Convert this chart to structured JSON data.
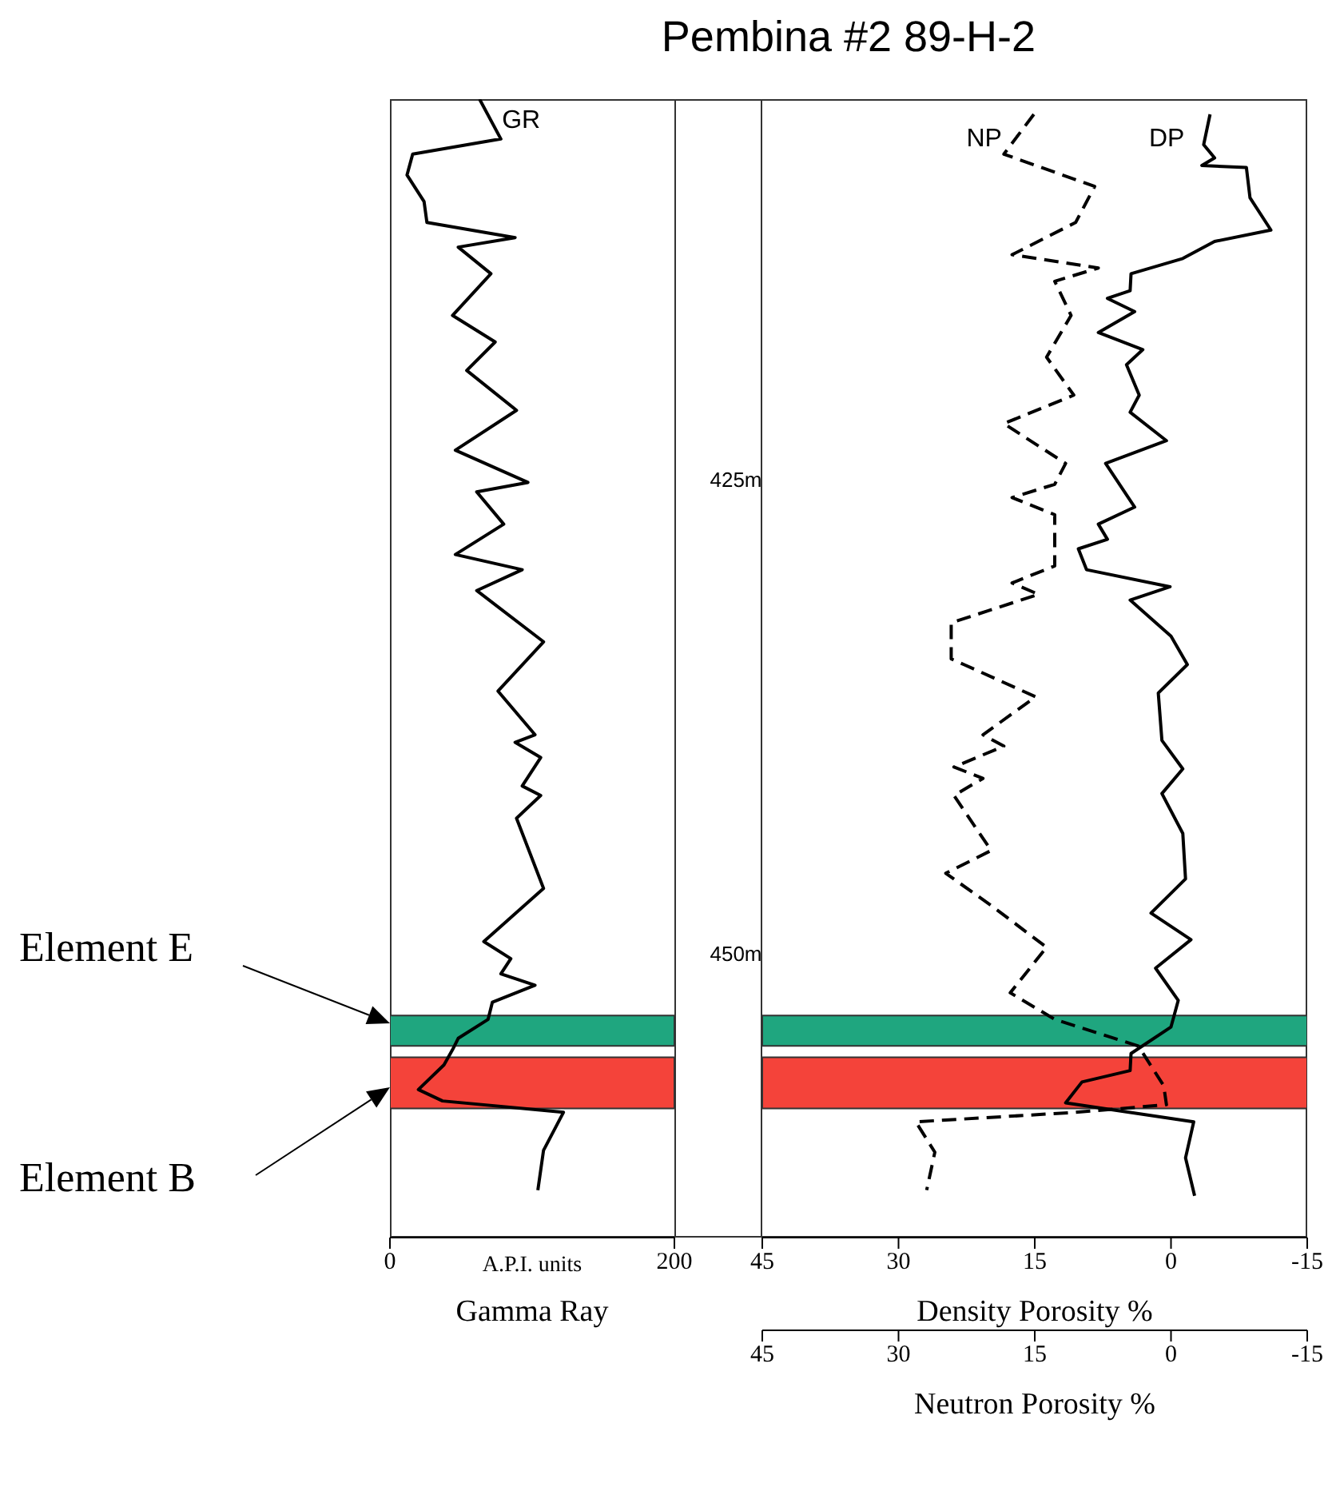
{
  "chart_data": [
    {
      "type": "line",
      "xlabel": "Gamma Ray",
      "xlim": [
        0,
        200
      ],
      "xticks": [
        0,
        200
      ],
      "ylim": [
        465,
        405
      ],
      "tick_labels": "x",
      "marker": "none",
      "annotations": [
        "A.P.I. units",
        "Element E",
        "Element B"
      ],
      "bands": [
        {
          "axis": "y",
          "from": 453.3,
          "to": 454.9,
          "color": "#1fa67f"
        },
        {
          "axis": "y",
          "from": 455.5,
          "to": 458.2,
          "color": "#f4433a"
        }
      ],
      "series": [
        {
          "name": "GR",
          "color": "#000000",
          "line_style": "solid",
          "x": [
            63,
            78,
            16,
            12,
            24,
            26,
            88,
            48,
            71,
            44,
            74,
            54,
            89,
            46,
            97,
            61,
            80,
            46,
            93,
            61,
            108,
            76,
            102,
            88,
            106,
            93,
            106,
            89,
            108,
            66,
            85,
            78,
            102,
            72,
            69,
            48,
            44,
            38,
            20,
            37,
            122,
            108,
            104
          ],
          "values": [
            405.0,
            407.1,
            407.9,
            409.0,
            410.4,
            411.5,
            412.3,
            412.8,
            414.2,
            416.4,
            417.8,
            419.3,
            421.4,
            423.5,
            425.2,
            425.7,
            427.4,
            429.0,
            429.8,
            430.9,
            433.6,
            436.2,
            438.5,
            438.9,
            439.7,
            441.2,
            441.7,
            442.9,
            446.6,
            449.4,
            450.3,
            451.1,
            451.7,
            452.6,
            453.5,
            454.5,
            455.1,
            455.9,
            457.2,
            457.8,
            458.4,
            460.4,
            462.5
          ]
        }
      ]
    },
    {
      "type": "line",
      "title": "Pembina #2 89-H-2",
      "xlabel": "Density Porosity %",
      "xlim": [
        45,
        -15
      ],
      "xticks": [
        45,
        30,
        15,
        0,
        -15
      ],
      "x2label": "Neutron Porosity %",
      "x2lim": [
        45,
        -15
      ],
      "x2ticks": [
        45,
        30,
        15,
        0,
        -15
      ],
      "ylim": [
        465,
        405
      ],
      "yticks": [
        {
          "value": 425,
          "label": "425m"
        },
        {
          "value": 450,
          "label": "450m"
        }
      ],
      "marker": "none",
      "bands": [
        {
          "axis": "y",
          "from": 453.3,
          "to": 454.9,
          "color": "#1fa67f"
        },
        {
          "axis": "y",
          "from": 455.5,
          "to": 458.2,
          "color": "#f4433a"
        }
      ],
      "series": [
        {
          "name": "DP",
          "color": "#000000",
          "line_style": "solid",
          "x": [
            -4.3,
            -3.6,
            -4.8,
            -3.4,
            -8.3,
            -8.7,
            -11.0,
            -4.8,
            -1.3,
            4.4,
            4.5,
            7.0,
            4.0,
            8.0,
            3.1,
            4.9,
            3.5,
            4.5,
            0.5,
            7.2,
            4.0,
            8.0,
            7.0,
            10.2,
            9.3,
            0.1,
            4.5,
            0,
            -1.8,
            1.4,
            1.0,
            -1.3,
            1.0,
            -1.3,
            -1.6,
            2.2,
            -2.2,
            1.7,
            -0.8,
            0,
            4.4,
            4.5,
            9.8,
            11.6,
            -2.5,
            -1.6,
            -2.6
          ],
          "values": [
            405.8,
            407.4,
            408.1,
            408.5,
            408.6,
            410.2,
            411.9,
            412.5,
            413.4,
            414.2,
            415.1,
            415.5,
            416.2,
            417.3,
            418.2,
            419.0,
            420.6,
            421.5,
            423.0,
            424.2,
            426.5,
            427.4,
            428.2,
            428.7,
            429.8,
            430.7,
            431.4,
            433.3,
            434.8,
            436.3,
            438.8,
            440.3,
            441.6,
            443.7,
            446.1,
            447.9,
            449.3,
            450.8,
            452.5,
            453.9,
            455.3,
            456.2,
            456.8,
            457.9,
            458.9,
            460.8,
            462.8
          ]
        },
        {
          "name": "NP",
          "color": "#000000",
          "line_style": "dashed",
          "axis": "x2",
          "x": [
            15.1,
            18.4,
            8.4,
            10.5,
            17.5,
            8.0,
            12.8,
            11.0,
            13.7,
            10.7,
            18.4,
            11.6,
            12.8,
            17.5,
            12.8,
            12.8,
            17.5,
            14.6,
            24.2,
            24.2,
            22.8,
            14.9,
            20.7,
            18.4,
            23.9,
            20.7,
            23.9,
            19.8,
            24.8,
            19.8,
            13.7,
            17.7,
            12.8,
            3.6,
            0.8,
            0.5,
            10.5,
            28.1,
            26.0,
            26.9
          ],
          "values": [
            405.8,
            407.9,
            409.6,
            411.5,
            413.2,
            413.9,
            414.6,
            416.4,
            418.6,
            420.6,
            422.1,
            424.2,
            425.3,
            426.0,
            426.9,
            429.6,
            430.5,
            431.1,
            432.6,
            434.5,
            434.8,
            436.5,
            438.5,
            439.1,
            440.2,
            440.8,
            441.7,
            444.6,
            445.8,
            447.5,
            449.7,
            452.1,
            453.5,
            454.9,
            457.0,
            458.0,
            458.4,
            458.9,
            460.5,
            462.5
          ]
        }
      ]
    }
  ]
}
